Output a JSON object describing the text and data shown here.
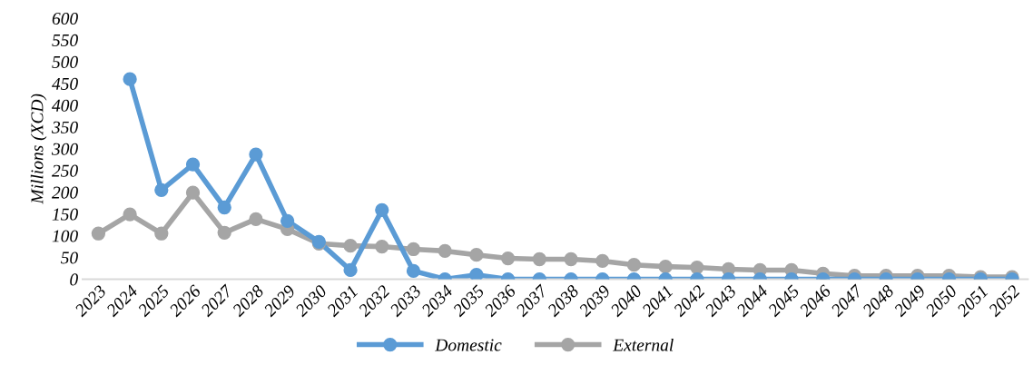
{
  "chart_data": {
    "type": "line",
    "ylabel": "Millions (XCD)",
    "categories": [
      "2023",
      "2024",
      "2025",
      "2026",
      "2027",
      "2028",
      "2029",
      "2030",
      "2031",
      "2032",
      "2033",
      "2034",
      "2035",
      "2036",
      "2037",
      "2038",
      "2039",
      "2040",
      "2041",
      "2042",
      "2043",
      "2044",
      "2045",
      "2046",
      "2047",
      "2048",
      "2049",
      "2050",
      "2051",
      "2052"
    ],
    "series": [
      {
        "name": "Domestic",
        "color": "#5b9bd5",
        "values": [
          null,
          460,
          205,
          264,
          165,
          287,
          134,
          86,
          21,
          159,
          19,
          0,
          10,
          0,
          0,
          0,
          0,
          0,
          0,
          0,
          0,
          0,
          0,
          0,
          0,
          0,
          0,
          0,
          0,
          0
        ]
      },
      {
        "name": "External",
        "color": "#a5a5a5",
        "values": [
          105,
          149,
          105,
          199,
          107,
          138,
          115,
          82,
          77,
          75,
          69,
          65,
          56,
          48,
          46,
          46,
          42,
          33,
          29,
          27,
          23,
          21,
          21,
          13,
          8,
          8,
          8,
          8,
          5,
          5
        ]
      }
    ],
    "ylim": [
      0,
      600
    ],
    "yticks": [
      0,
      50,
      100,
      150,
      200,
      250,
      300,
      350,
      400,
      450,
      500,
      550,
      600
    ],
    "grid": false,
    "legend": "bottom",
    "marker": "circle",
    "line_style": "solid"
  }
}
